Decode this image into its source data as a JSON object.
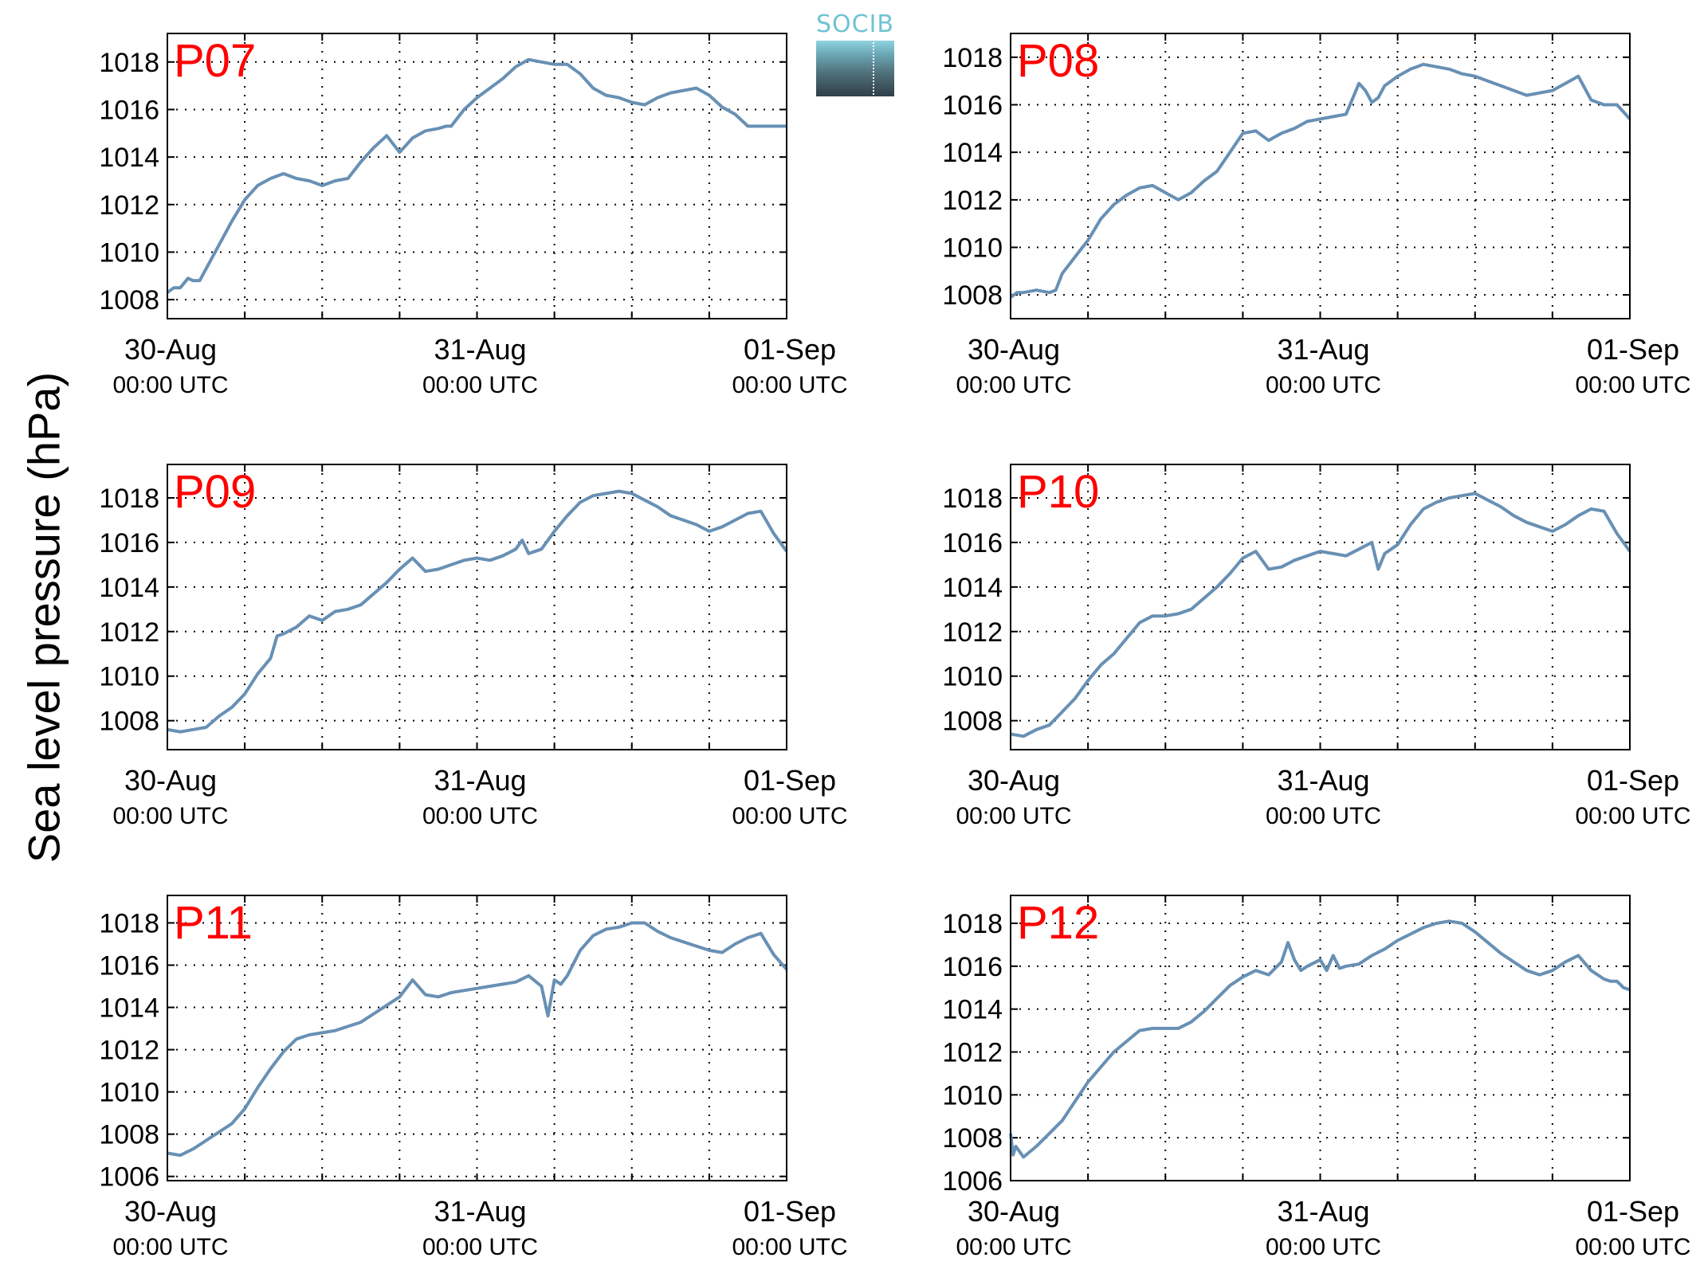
{
  "ylabel": "Sea level pressure (hPa)",
  "logo": {
    "text": "SOCIB"
  },
  "colors": {
    "line": "#6890b4",
    "panel_label": "#ff0000",
    "grid": "#000000",
    "axis": "#000000"
  },
  "chart_data": [
    {
      "type": "line",
      "title": "P07",
      "ylim": [
        1007.2,
        1019.2
      ],
      "yticks": [
        1008,
        1010,
        1012,
        1014,
        1016,
        1018
      ],
      "xlim": [
        0,
        48
      ],
      "xticks": [
        0,
        6,
        12,
        18,
        24,
        30,
        36,
        42,
        48
      ],
      "xticklabels": [
        {
          "x": 0,
          "date": "30-Aug",
          "time": "00:00 UTC"
        },
        {
          "x": 24,
          "date": "31-Aug",
          "time": "00:00 UTC"
        },
        {
          "x": 48,
          "date": "01-Sep",
          "time": "00:00 UTC"
        }
      ],
      "grid": true,
      "series": [
        {
          "x": [
            0,
            0.5,
            1.0,
            1.6,
            2.0,
            2.5,
            3.5,
            4.2,
            5.0,
            6.0,
            7.0,
            8.0,
            9.0,
            10.0,
            11.0,
            12.0,
            12.5,
            13.0,
            14.0,
            15.0,
            16.0,
            17.0,
            18.0,
            19.0,
            20.0,
            21.0,
            21.6,
            22.0,
            23.0,
            24.0,
            25.0,
            26.0,
            27.0,
            28.0,
            29.0,
            30.0,
            31.0,
            32.0,
            33.0,
            34.0,
            35.0,
            36.0,
            37.0,
            38.0,
            39.0,
            40.0,
            41.0,
            42.0,
            43.0,
            44.0,
            45.0,
            45.5,
            46.0,
            46.5,
            47.0,
            48.0
          ],
          "y": [
            1008.3,
            1008.5,
            1008.5,
            1008.9,
            1008.8,
            1008.8,
            1009.8,
            1010.5,
            1011.3,
            1012.2,
            1012.8,
            1013.1,
            1013.3,
            1013.1,
            1013.0,
            1012.8,
            1012.9,
            1013.0,
            1013.1,
            1013.8,
            1014.4,
            1014.9,
            1014.2,
            1014.8,
            1015.1,
            1015.2,
            1015.3,
            1015.3,
            1016.0,
            1016.5,
            1016.9,
            1017.3,
            1017.8,
            1018.1,
            1018.0,
            1017.9,
            1017.9,
            1017.5,
            1016.9,
            1016.6,
            1016.5,
            1016.3,
            1016.2,
            1016.5,
            1016.7,
            1016.8,
            1016.9,
            1016.6,
            1016.1,
            1015.8,
            1015.3,
            1015.3,
            1015.3,
            1015.3,
            1015.3,
            1015.3
          ]
        }
      ]
    },
    {
      "type": "line",
      "title": "P08",
      "ylim": [
        1007.0,
        1019.0
      ],
      "yticks": [
        1008,
        1010,
        1012,
        1014,
        1016,
        1018
      ],
      "xlim": [
        0,
        48
      ],
      "xticks": [
        0,
        6,
        12,
        18,
        24,
        30,
        36,
        42,
        48
      ],
      "xticklabels": [
        {
          "x": 0,
          "date": "30-Aug",
          "time": "00:00 UTC"
        },
        {
          "x": 24,
          "date": "31-Aug",
          "time": "00:00 UTC"
        },
        {
          "x": 48,
          "date": "01-Sep",
          "time": "00:00 UTC"
        }
      ],
      "grid": true,
      "series": [
        {
          "x": [
            0,
            0.5,
            1.0,
            2.0,
            3.0,
            3.5,
            4.0,
            5.0,
            6.0,
            7.0,
            8.0,
            9.0,
            10.0,
            11.0,
            12.0,
            13.0,
            14.0,
            15.0,
            16.0,
            17.0,
            18.0,
            19.0,
            20.0,
            21.0,
            22.0,
            23.0,
            24.0,
            25.0,
            26.0,
            27.0,
            27.5,
            28.0,
            28.5,
            29.0,
            29.5,
            30.0,
            31.0,
            32.0,
            33.0,
            34.0,
            35.0,
            36.0,
            37.0,
            38.0,
            39.0,
            40.0,
            41.0,
            42.0,
            43.0,
            44.0,
            45.0,
            46.0,
            47.0,
            48.0
          ],
          "y": [
            1007.9,
            1008.1,
            1008.1,
            1008.2,
            1008.1,
            1008.2,
            1008.9,
            1009.6,
            1010.3,
            1011.2,
            1011.8,
            1012.2,
            1012.5,
            1012.6,
            1012.3,
            1012.0,
            1012.3,
            1012.8,
            1013.2,
            1014.0,
            1014.8,
            1014.9,
            1014.5,
            1014.8,
            1015.0,
            1015.3,
            1015.4,
            1015.5,
            1015.6,
            1016.9,
            1016.6,
            1016.1,
            1016.3,
            1016.8,
            1017.0,
            1017.2,
            1017.5,
            1017.7,
            1017.6,
            1017.5,
            1017.3,
            1017.2,
            1017.0,
            1016.8,
            1016.6,
            1016.4,
            1016.5,
            1016.6,
            1016.9,
            1017.2,
            1016.2,
            1016.0,
            1016.0,
            1015.4
          ]
        }
      ]
    },
    {
      "type": "line",
      "title": "P09",
      "ylim": [
        1006.7,
        1019.5
      ],
      "yticks": [
        1008,
        1010,
        1012,
        1014,
        1016,
        1018
      ],
      "xlim": [
        0,
        48
      ],
      "xticks": [
        0,
        6,
        12,
        18,
        24,
        30,
        36,
        42,
        48
      ],
      "xticklabels": [
        {
          "x": 0,
          "date": "30-Aug",
          "time": "00:00 UTC"
        },
        {
          "x": 24,
          "date": "31-Aug",
          "time": "00:00 UTC"
        },
        {
          "x": 48,
          "date": "01-Sep",
          "time": "00:00 UTC"
        }
      ],
      "grid": true,
      "series": [
        {
          "x": [
            0,
            1.0,
            2.0,
            3.0,
            4.0,
            5.0,
            6.0,
            7.0,
            8.0,
            8.5,
            9.0,
            10.0,
            11.0,
            12.0,
            13.0,
            14.0,
            15.0,
            16.0,
            17.0,
            18.0,
            19.0,
            20.0,
            21.0,
            22.0,
            23.0,
            24.0,
            25.0,
            26.0,
            27.0,
            27.5,
            28.0,
            29.0,
            30.0,
            31.0,
            32.0,
            33.0,
            34.0,
            35.0,
            36.0,
            37.0,
            38.0,
            39.0,
            40.0,
            41.0,
            42.0,
            43.0,
            44.0,
            45.0,
            46.0,
            47.0,
            48.0
          ],
          "y": [
            1007.6,
            1007.5,
            1007.6,
            1007.7,
            1008.2,
            1008.6,
            1009.2,
            1010.1,
            1010.8,
            1011.8,
            1011.9,
            1012.2,
            1012.7,
            1012.5,
            1012.9,
            1013.0,
            1013.2,
            1013.7,
            1014.2,
            1014.8,
            1015.3,
            1014.7,
            1014.8,
            1015.0,
            1015.2,
            1015.3,
            1015.2,
            1015.4,
            1015.7,
            1016.1,
            1015.5,
            1015.7,
            1016.5,
            1017.2,
            1017.8,
            1018.1,
            1018.2,
            1018.3,
            1018.2,
            1017.9,
            1017.6,
            1017.2,
            1017.0,
            1016.8,
            1016.5,
            1016.7,
            1017.0,
            1017.3,
            1017.4,
            1016.4,
            1015.6
          ]
        }
      ]
    },
    {
      "type": "line",
      "title": "P10",
      "ylim": [
        1006.7,
        1019.5
      ],
      "yticks": [
        1008,
        1010,
        1012,
        1014,
        1016,
        1018
      ],
      "xlim": [
        0,
        48
      ],
      "xticks": [
        0,
        6,
        12,
        18,
        24,
        30,
        36,
        42,
        48
      ],
      "xticklabels": [
        {
          "x": 0,
          "date": "30-Aug",
          "time": "00:00 UTC"
        },
        {
          "x": 24,
          "date": "31-Aug",
          "time": "00:00 UTC"
        },
        {
          "x": 48,
          "date": "01-Sep",
          "time": "00:00 UTC"
        }
      ],
      "grid": true,
      "series": [
        {
          "x": [
            0,
            1.0,
            2.0,
            3.0,
            4.0,
            5.0,
            6.0,
            7.0,
            8.0,
            9.0,
            10.0,
            11.0,
            12.0,
            13.0,
            14.0,
            15.0,
            16.0,
            17.0,
            18.0,
            19.0,
            20.0,
            21.0,
            22.0,
            23.0,
            24.0,
            25.0,
            26.0,
            27.0,
            28.0,
            28.5,
            29.0,
            30.0,
            31.0,
            32.0,
            33.0,
            34.0,
            35.0,
            36.0,
            37.0,
            38.0,
            39.0,
            40.0,
            41.0,
            42.0,
            43.0,
            44.0,
            45.0,
            46.0,
            47.0,
            48.0
          ],
          "y": [
            1007.4,
            1007.3,
            1007.6,
            1007.8,
            1008.4,
            1009.0,
            1009.8,
            1010.5,
            1011.0,
            1011.7,
            1012.4,
            1012.7,
            1012.7,
            1012.8,
            1013.0,
            1013.5,
            1014.0,
            1014.6,
            1015.3,
            1015.6,
            1014.8,
            1014.9,
            1015.2,
            1015.4,
            1015.6,
            1015.5,
            1015.4,
            1015.7,
            1016.0,
            1014.8,
            1015.5,
            1015.9,
            1016.8,
            1017.5,
            1017.8,
            1018.0,
            1018.1,
            1018.2,
            1017.9,
            1017.6,
            1017.2,
            1016.9,
            1016.7,
            1016.5,
            1016.8,
            1017.2,
            1017.5,
            1017.4,
            1016.4,
            1015.6
          ]
        }
      ]
    },
    {
      "type": "line",
      "title": "P11",
      "ylim": [
        1005.8,
        1019.3
      ],
      "yticks": [
        1006,
        1008,
        1010,
        1012,
        1014,
        1016,
        1018
      ],
      "xlim": [
        0,
        48
      ],
      "xticks": [
        0,
        6,
        12,
        18,
        24,
        30,
        36,
        42,
        48
      ],
      "xticklabels": [
        {
          "x": 0,
          "date": "30-Aug",
          "time": "00:00 UTC"
        },
        {
          "x": 24,
          "date": "31-Aug",
          "time": "00:00 UTC"
        },
        {
          "x": 48,
          "date": "01-Sep",
          "time": "00:00 UTC"
        }
      ],
      "grid": true,
      "series": [
        {
          "x": [
            0,
            1.0,
            2.0,
            3.0,
            4.0,
            5.0,
            6.0,
            7.0,
            8.0,
            9.0,
            10.0,
            11.0,
            12.0,
            13.0,
            14.0,
            15.0,
            16.0,
            17.0,
            18.0,
            19.0,
            20.0,
            21.0,
            22.0,
            23.0,
            24.0,
            25.0,
            26.0,
            27.0,
            28.0,
            29.0,
            29.5,
            30.0,
            30.5,
            31.0,
            32.0,
            33.0,
            34.0,
            35.0,
            36.0,
            37.0,
            38.0,
            39.0,
            40.0,
            41.0,
            42.0,
            43.0,
            44.0,
            45.0,
            46.0,
            47.0,
            48.0
          ],
          "y": [
            1007.1,
            1007.0,
            1007.3,
            1007.7,
            1008.1,
            1008.5,
            1009.2,
            1010.2,
            1011.1,
            1011.9,
            1012.5,
            1012.7,
            1012.8,
            1012.9,
            1013.1,
            1013.3,
            1013.7,
            1014.1,
            1014.5,
            1015.3,
            1014.6,
            1014.5,
            1014.7,
            1014.8,
            1014.9,
            1015.0,
            1015.1,
            1015.2,
            1015.5,
            1015.0,
            1013.6,
            1015.3,
            1015.1,
            1015.5,
            1016.7,
            1017.4,
            1017.7,
            1017.8,
            1018.0,
            1018.0,
            1017.6,
            1017.3,
            1017.1,
            1016.9,
            1016.7,
            1016.6,
            1017.0,
            1017.3,
            1017.5,
            1016.5,
            1015.8
          ]
        }
      ]
    },
    {
      "type": "line",
      "title": "P12",
      "ylim": [
        1006.0,
        1019.3
      ],
      "yticks": [
        1006,
        1008,
        1010,
        1012,
        1014,
        1016,
        1018
      ],
      "xlim": [
        0,
        48
      ],
      "xticks": [
        0,
        6,
        12,
        18,
        24,
        30,
        36,
        42,
        48
      ],
      "xticklabels": [
        {
          "x": 0,
          "date": "30-Aug",
          "time": "00:00 UTC"
        },
        {
          "x": 24,
          "date": "31-Aug",
          "time": "00:00 UTC"
        },
        {
          "x": 48,
          "date": "01-Sep",
          "time": "00:00 UTC"
        }
      ],
      "grid": true,
      "series": [
        {
          "x": [
            0,
            0.2,
            0.4,
            1.0,
            2.0,
            3.0,
            4.0,
            5.0,
            6.0,
            7.0,
            8.0,
            9.0,
            10.0,
            11.0,
            12.0,
            13.0,
            14.0,
            15.0,
            16.0,
            17.0,
            18.0,
            19.0,
            20.0,
            21.0,
            21.5,
            22.0,
            22.5,
            23.0,
            24.0,
            24.5,
            25.0,
            25.5,
            26.0,
            27.0,
            28.0,
            29.0,
            30.0,
            31.0,
            32.0,
            33.0,
            34.0,
            35.0,
            36.0,
            37.0,
            38.0,
            39.0,
            40.0,
            41.0,
            42.0,
            43.0,
            44.0,
            45.0,
            46.0,
            46.5,
            47.0,
            47.5,
            48.0
          ],
          "y": [
            1008.2,
            1007.2,
            1007.6,
            1007.1,
            1007.6,
            1008.2,
            1008.8,
            1009.7,
            1010.6,
            1011.3,
            1012.0,
            1012.5,
            1013.0,
            1013.1,
            1013.1,
            1013.1,
            1013.4,
            1013.9,
            1014.5,
            1015.1,
            1015.5,
            1015.8,
            1015.6,
            1016.2,
            1017.1,
            1016.3,
            1015.8,
            1016.0,
            1016.3,
            1015.8,
            1016.5,
            1015.9,
            1016.0,
            1016.1,
            1016.5,
            1016.8,
            1017.2,
            1017.5,
            1017.8,
            1018.0,
            1018.1,
            1018.0,
            1017.6,
            1017.1,
            1016.6,
            1016.2,
            1015.8,
            1015.6,
            1015.8,
            1016.2,
            1016.5,
            1015.8,
            1015.4,
            1015.3,
            1015.3,
            1015.0,
            1014.9
          ]
        }
      ]
    }
  ]
}
